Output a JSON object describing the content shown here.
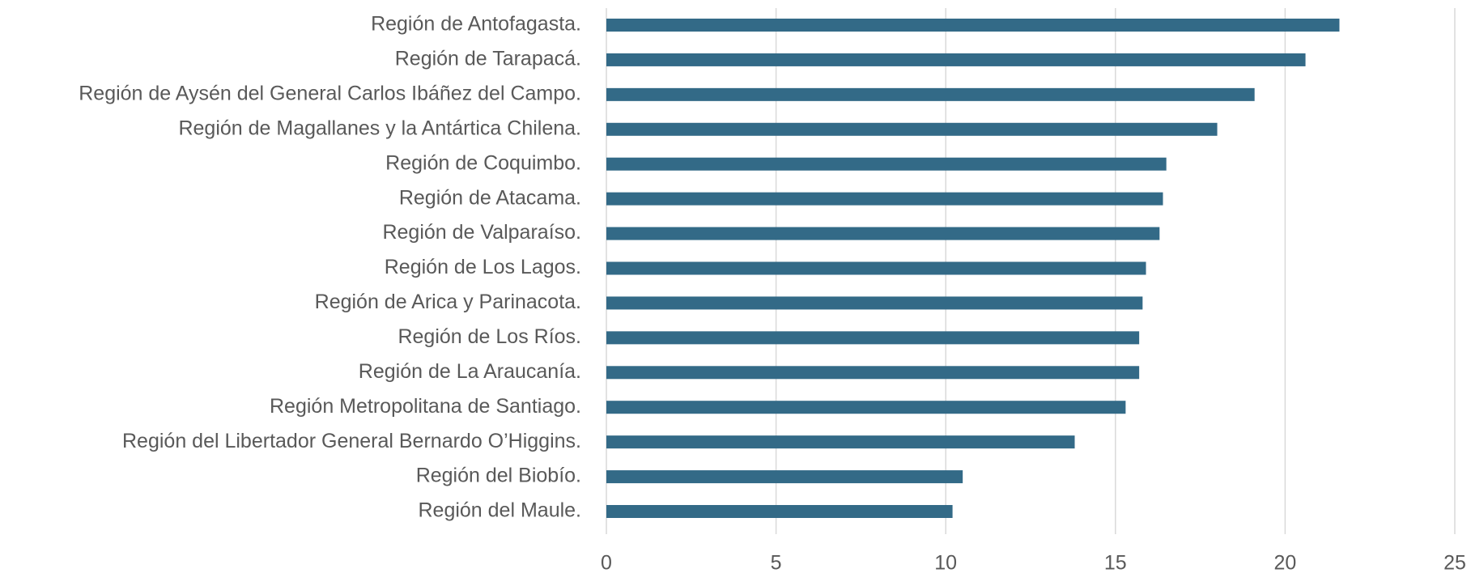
{
  "chart_data": {
    "type": "barh",
    "categories": [
      "Región de Antofagasta.",
      "Región de Tarapacá.",
      "Región de Aysén del General Carlos Ibáñez del Campo.",
      "Región de Magallanes y la Antártica Chilena.",
      "Región de Coquimbo.",
      "Región de Atacama.",
      "Región de Valparaíso.",
      "Región de Los Lagos.",
      "Región de Arica y Parinacota.",
      "Región de Los Ríos.",
      "Región de La Araucanía.",
      "Región Metropolitana de Santiago.",
      "Región del Libertador General Bernardo O’Higgins.",
      "Región del Biobío.",
      "Región del Maule."
    ],
    "values": [
      21.6,
      20.6,
      19.1,
      18.0,
      16.5,
      16.4,
      16.3,
      15.9,
      15.8,
      15.7,
      15.7,
      15.3,
      13.8,
      10.5,
      10.2
    ],
    "color": "#336a87",
    "xlim": [
      0,
      25
    ],
    "xticks": [
      0,
      5,
      10,
      15,
      20,
      25
    ],
    "grid": true
  }
}
